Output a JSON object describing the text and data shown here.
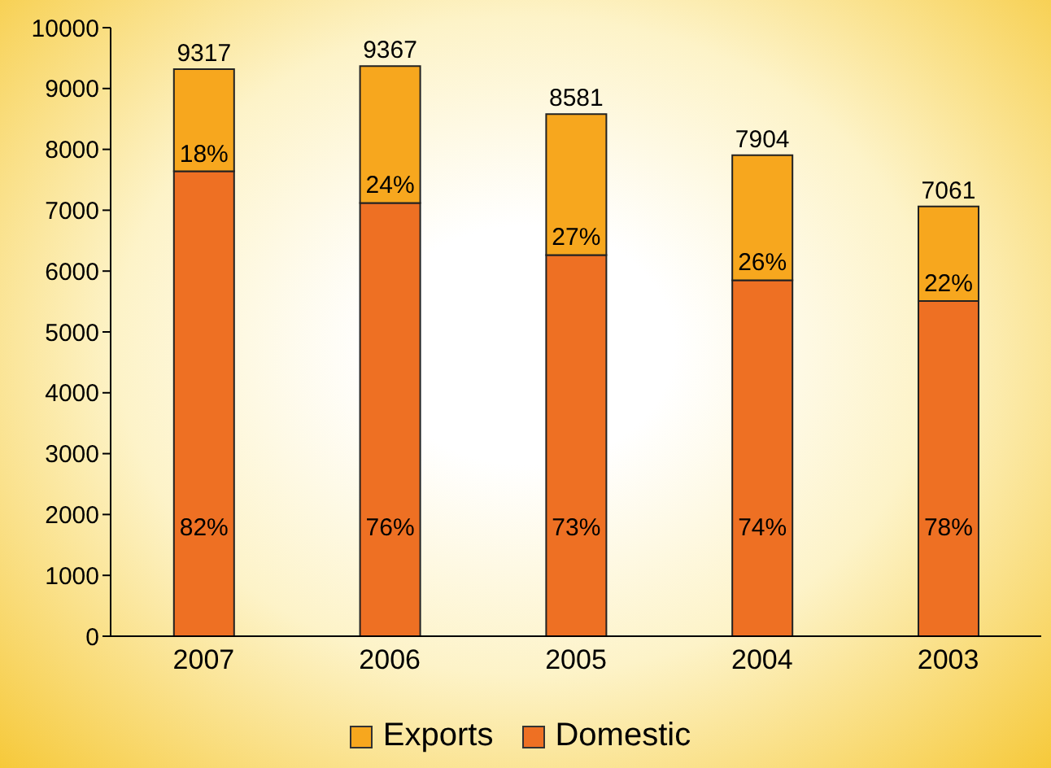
{
  "chart_data": {
    "type": "bar",
    "stacked": true,
    "categories": [
      "2007",
      "2006",
      "2005",
      "2004",
      "2003"
    ],
    "series": [
      {
        "name": "Domestic",
        "color": "#ee7023",
        "values": [
          7640,
          7119,
          6264,
          5849,
          5508
        ]
      },
      {
        "name": "Exports",
        "color": "#f7a71e",
        "values": [
          1677,
          2248,
          2317,
          2055,
          1553
        ]
      }
    ],
    "totals": [
      "9317",
      "9367",
      "8581",
      "7904",
      "7061"
    ],
    "annotations": [
      "82%",
      "76%",
      "73%",
      "74%",
      "78%",
      "18%",
      "24%",
      "27%",
      "26%",
      "22%"
    ],
    "ylim": [
      0,
      10000
    ],
    "yticks": [
      0,
      1000,
      2000,
      3000,
      4000,
      5000,
      6000,
      7000,
      8000,
      9000,
      10000
    ],
    "grid": false,
    "legend": "bottom"
  }
}
